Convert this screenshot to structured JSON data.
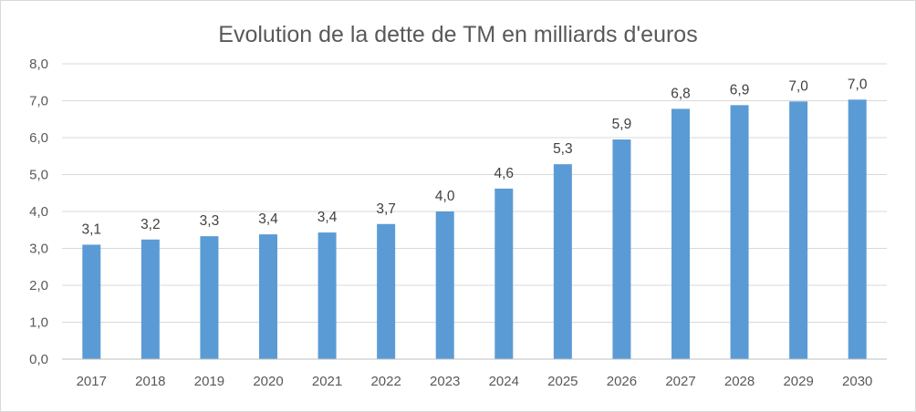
{
  "chart_data": {
    "type": "bar",
    "title": "Evolution de la dette de TM en milliards d'euros",
    "categories": [
      "2017",
      "2018",
      "2019",
      "2020",
      "2021",
      "2022",
      "2023",
      "2024",
      "2025",
      "2026",
      "2027",
      "2028",
      "2029",
      "2030"
    ],
    "values": [
      3.1,
      3.24,
      3.33,
      3.38,
      3.43,
      3.66,
      4.0,
      4.62,
      5.28,
      5.95,
      6.78,
      6.88,
      6.98,
      7.03
    ],
    "data_labels": [
      "3,1",
      "3,2",
      "3,3",
      "3,4",
      "3,4",
      "3,7",
      "4,0",
      "4,6",
      "5,3",
      "5,9",
      "6,8",
      "6,9",
      "7,0",
      "7,0"
    ],
    "y_ticks": [
      "0,0",
      "1,0",
      "2,0",
      "3,0",
      "4,0",
      "5,0",
      "6,0",
      "7,0",
      "8,0"
    ],
    "ylim": [
      0,
      8
    ],
    "grid": true,
    "legend": "none",
    "bar_color": "#5b9bd5"
  }
}
